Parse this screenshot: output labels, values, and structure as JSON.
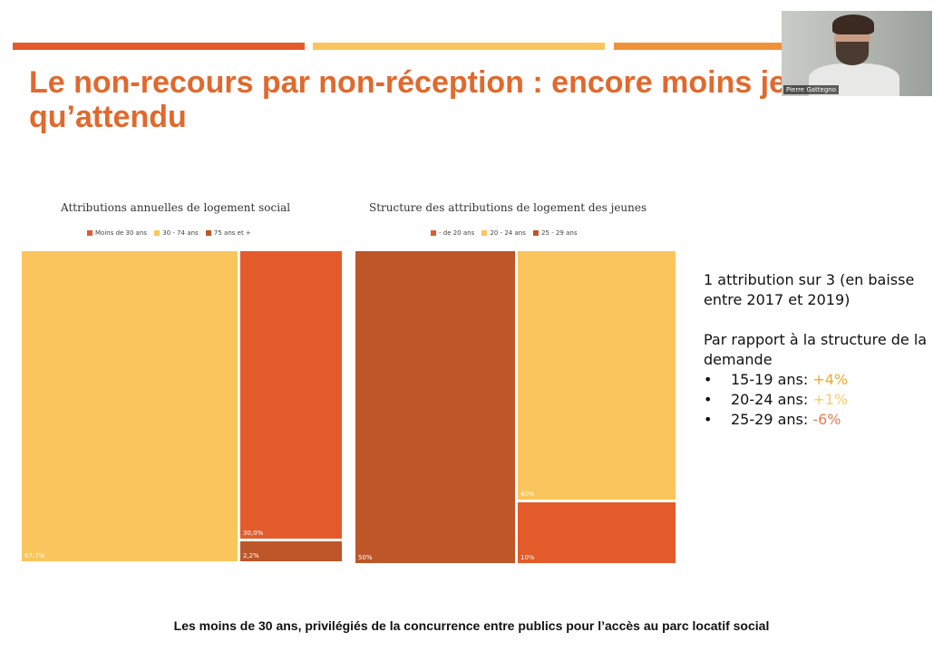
{
  "colors": {
    "dark_orange": "#bd5628",
    "orange": "#e35b2a",
    "yellow": "#f9c55c",
    "accent_bar_orange": "#e86e2f",
    "title_color": "#e1692d"
  },
  "slide": {
    "title": "Le non-recours par non-réception : encore moins jeune qu’attendu"
  },
  "webcam": {
    "participant_name": "Pierre Gattegno"
  },
  "side_text": {
    "line1": "1 attribution sur 3 (en baisse entre 2017 et 2019)",
    "line2": "Par rapport à la structure de la demande",
    "bullets": [
      {
        "label": "15-19 ans: ",
        "value": "+4%",
        "color": "#f0a830"
      },
      {
        "label": "20-24 ans: ",
        "value": "+1%",
        "color": "#f7cd6a"
      },
      {
        "label": "25-29 ans: ",
        "value": "-6%",
        "color": "#ec7b55"
      }
    ]
  },
  "footer": {
    "text": "Les moins de 30 ans, privilégiés de la concurrence entre publics pour l’accès au parc locatif social"
  },
  "chart_data": [
    {
      "type": "treemap",
      "title": "Attributions annuelles de logement social",
      "legend": [
        "Moins de 30 ans",
        "30 - 74 ans",
        "75 ans et +"
      ],
      "legend_colors": [
        "#e35b2a",
        "#f9c55c",
        "#bd5628"
      ],
      "items": [
        {
          "label": "67,7%",
          "category": "30 - 74 ans",
          "value": 67.7,
          "color": "#f9c55c"
        },
        {
          "label": "30,0%",
          "category": "Moins de 30 ans",
          "value": 30.0,
          "color": "#e35b2a"
        },
        {
          "label": "2,2%",
          "category": "75 ans et +",
          "value": 2.2,
          "color": "#bd5628"
        }
      ]
    },
    {
      "type": "treemap",
      "title": "Structure des attributions de logement des jeunes",
      "legend": [
        "- de 20 ans",
        "20 - 24 ans",
        "25 - 29 ans"
      ],
      "legend_colors": [
        "#e35b2a",
        "#f9c55c",
        "#bd5628"
      ],
      "items": [
        {
          "label": "50%",
          "category": "25 - 29 ans",
          "value": 50,
          "color": "#bd5628"
        },
        {
          "label": "40%",
          "category": "20 - 24 ans",
          "value": 40,
          "color": "#f9c55c"
        },
        {
          "label": "10%",
          "category": "- de 20 ans",
          "value": 10,
          "color": "#e35b2a"
        }
      ]
    }
  ]
}
